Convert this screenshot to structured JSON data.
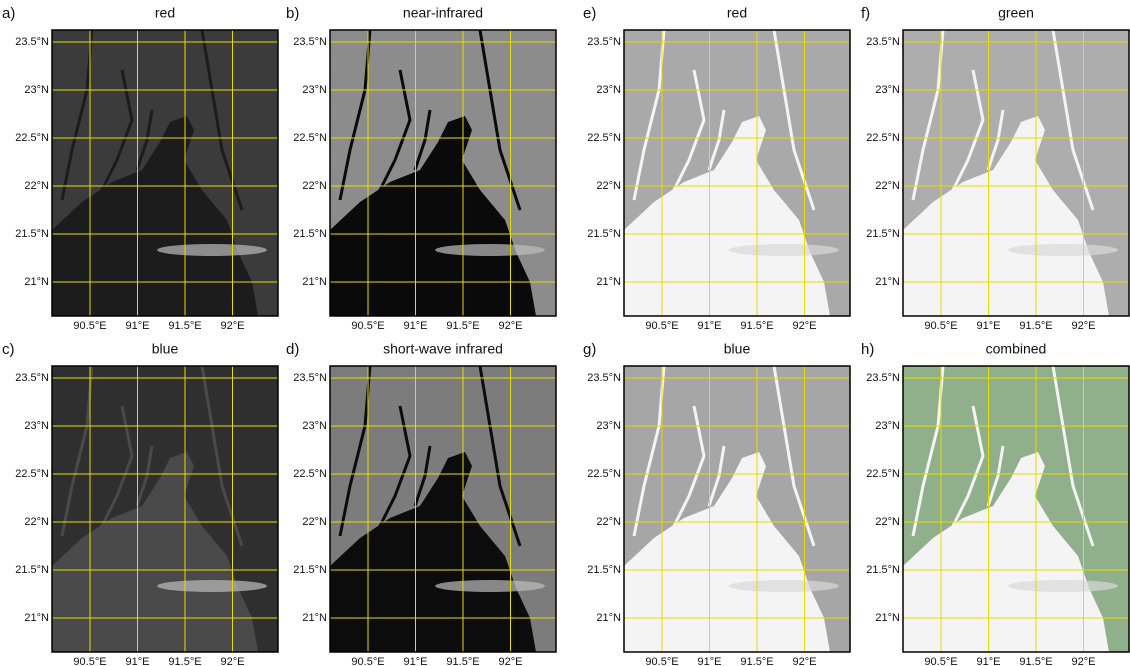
{
  "panels": [
    {
      "letter": "a)",
      "title": "red"
    },
    {
      "letter": "b)",
      "title": "near-infrared"
    },
    {
      "letter": "c)",
      "title": "blue"
    },
    {
      "letter": "d)",
      "title": "short-wave infrared"
    },
    {
      "letter": "e)",
      "title": "red"
    },
    {
      "letter": "f)",
      "title": "green"
    },
    {
      "letter": "g)",
      "title": "blue"
    },
    {
      "letter": "h)",
      "title": "combined"
    }
  ],
  "lat_labels": [
    "23.5°N",
    "23°N",
    "22.5°N",
    "22°N",
    "21.5°N",
    "21°N"
  ],
  "lon_labels": [
    "90.5°E",
    "91°E",
    "91.5°E",
    "92°E"
  ]
}
